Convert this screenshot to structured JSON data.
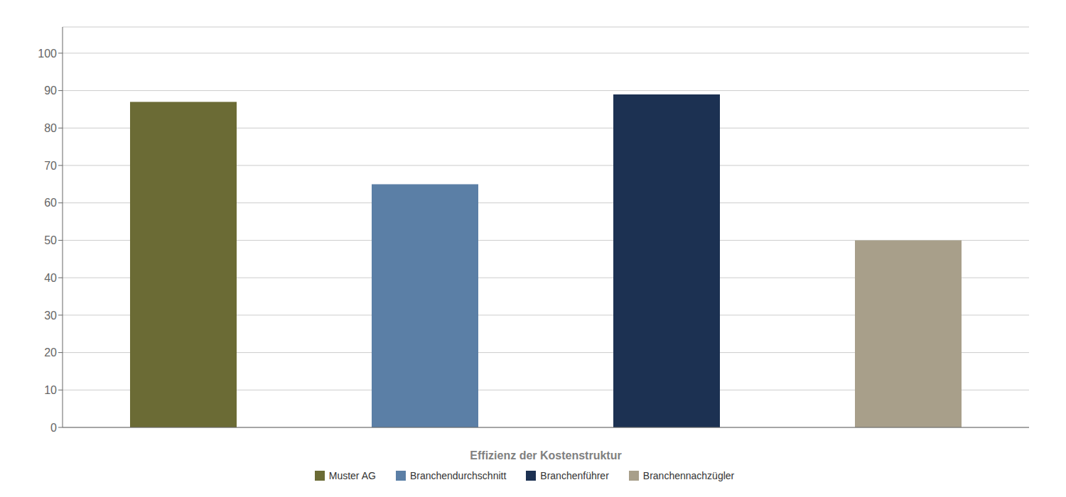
{
  "chart_data": {
    "type": "bar",
    "xlabel": "Effizienz der Kostenstruktur",
    "categories": [
      "Muster AG",
      "Branchendurchschnitt",
      "Branchenführer",
      "Branchennachzügler"
    ],
    "values": [
      87,
      65,
      89,
      50
    ],
    "colors": [
      "#6b6b35",
      "#5b7fa6",
      "#1c3152",
      "#a89f8a"
    ],
    "ylim": [
      0,
      107
    ],
    "yticks": [
      0,
      10,
      20,
      30,
      40,
      50,
      60,
      70,
      80,
      90,
      100
    ],
    "grid": true,
    "tick_labels": "y",
    "legend": "bottom"
  }
}
